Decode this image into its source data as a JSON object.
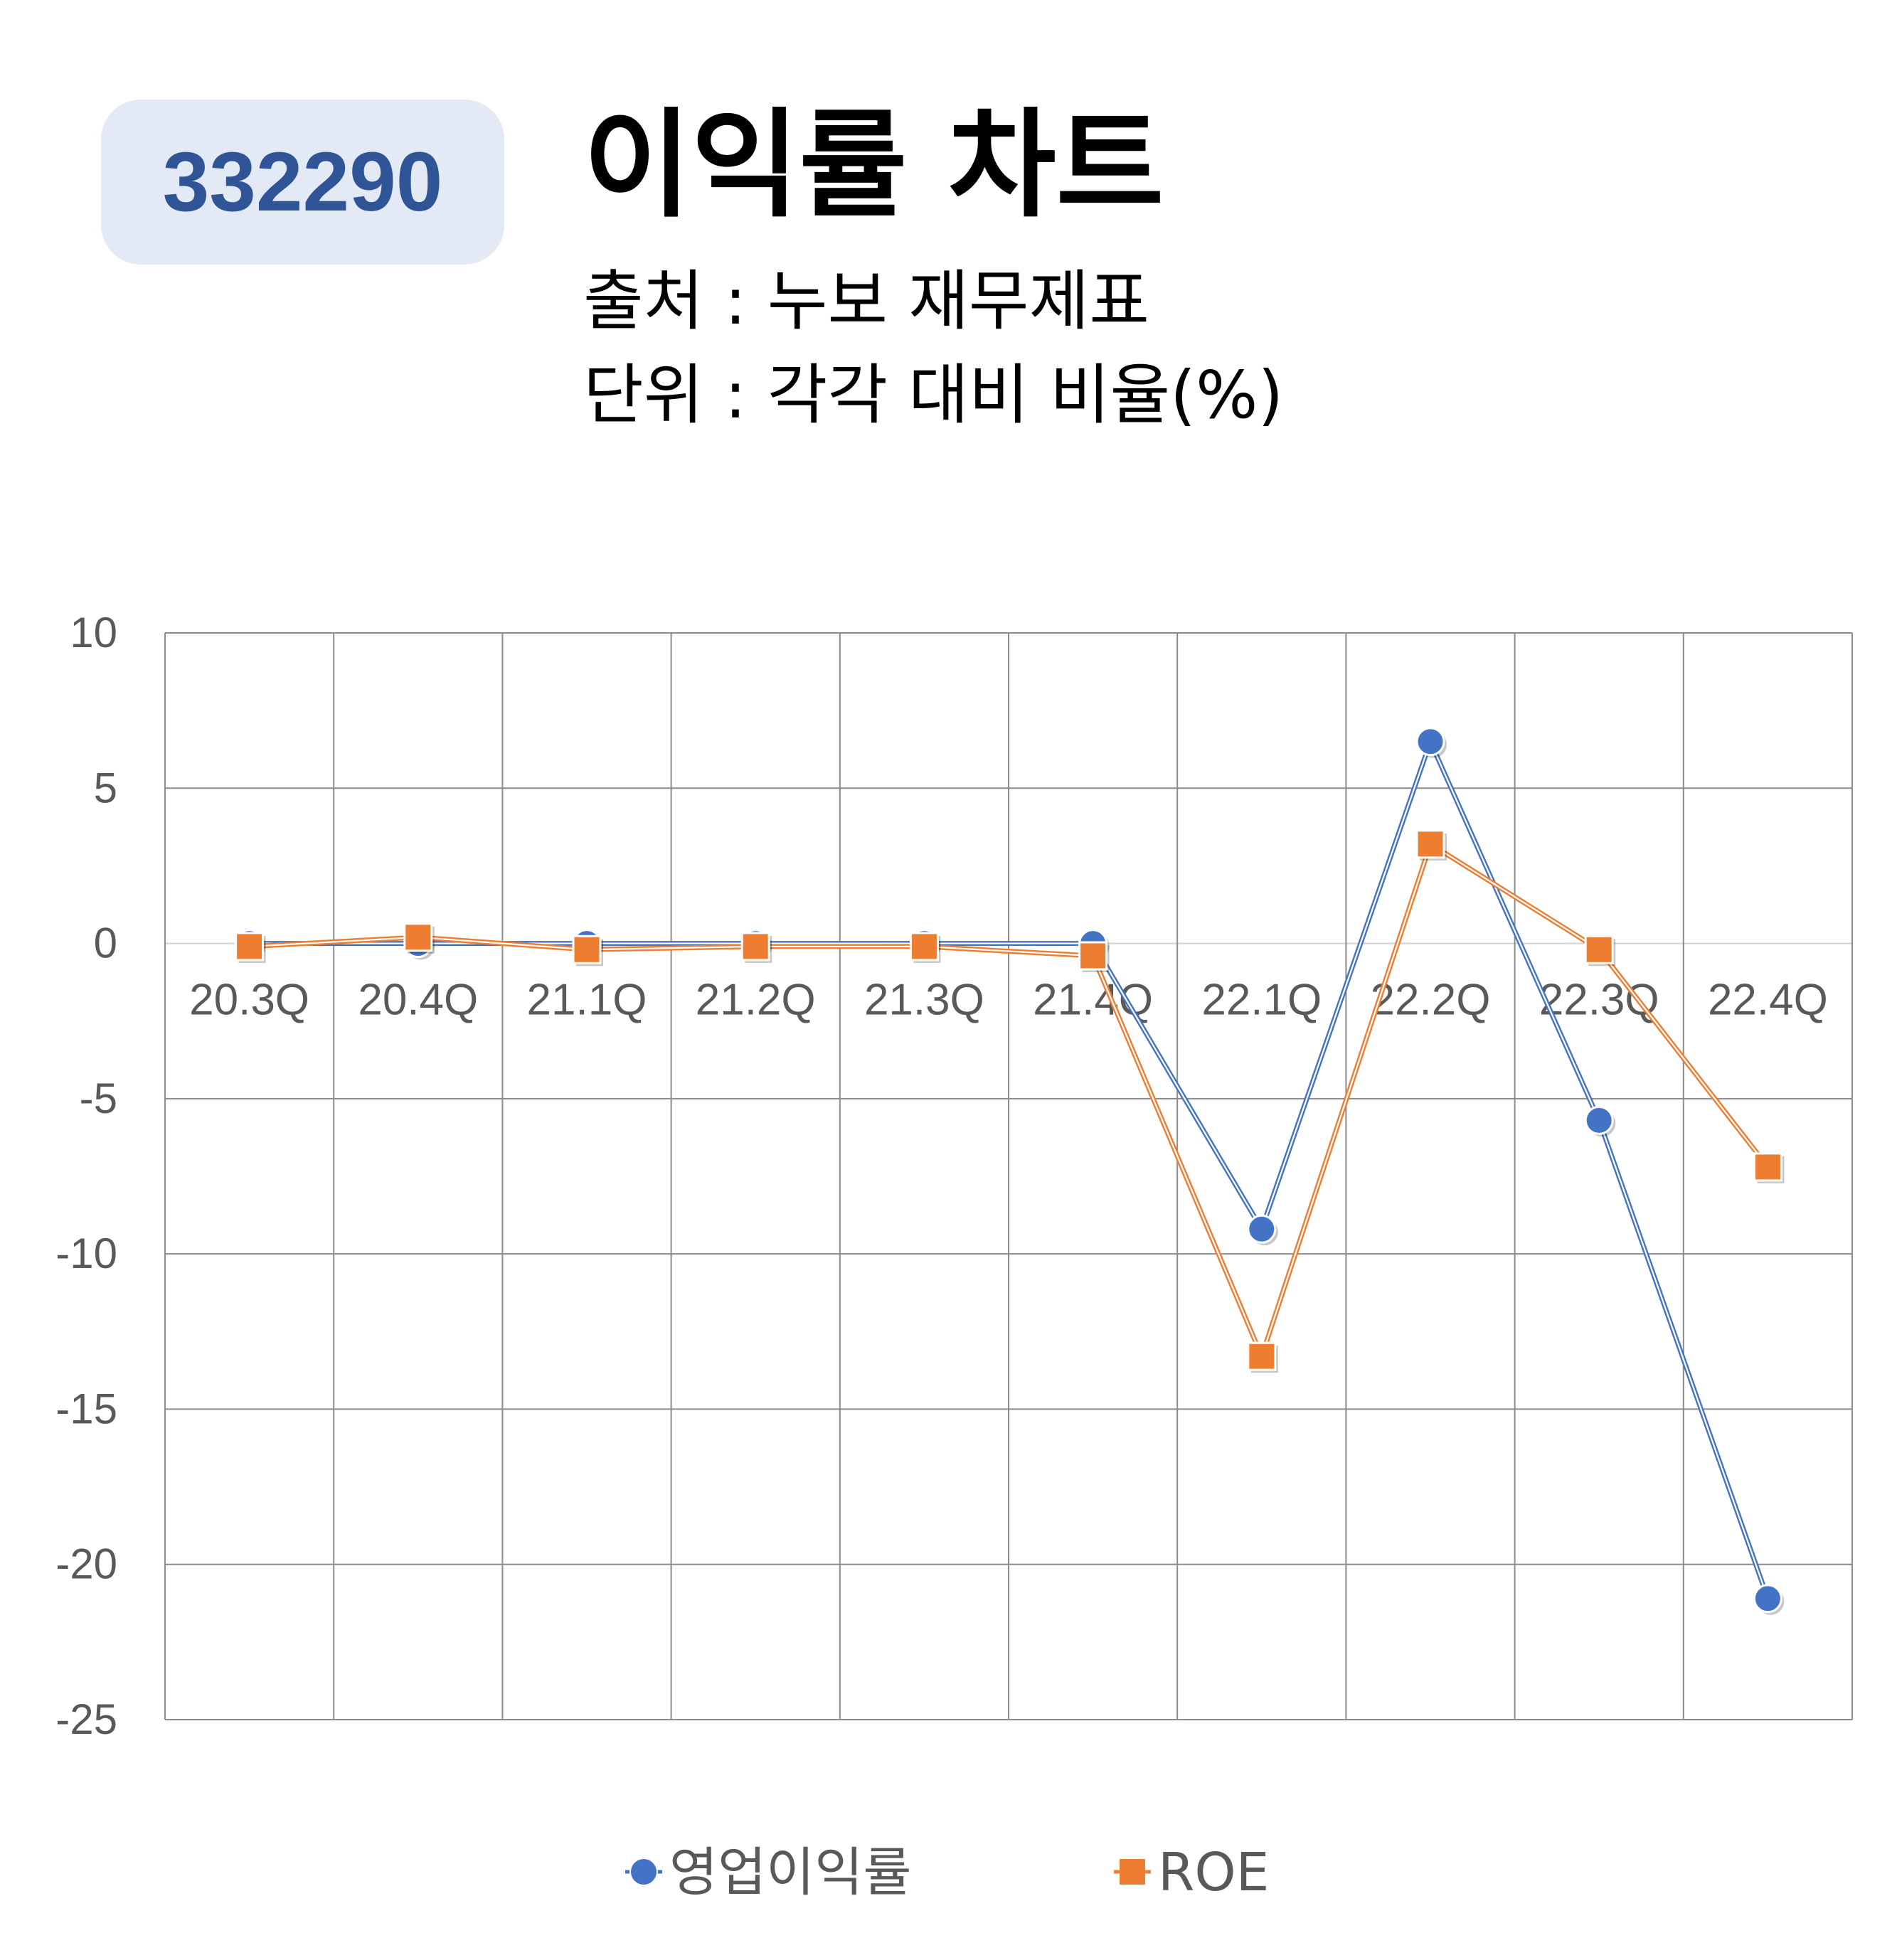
{
  "header": {
    "code": "332290",
    "title": "이익률 차트",
    "source_line": "출처 : 누보 재무제표",
    "unit_line": "단위 : 각각 대비 비율(%)"
  },
  "chart_data": {
    "type": "line",
    "categories": [
      "20.3Q",
      "20.4Q",
      "21.1Q",
      "21.2Q",
      "21.3Q",
      "21.4Q",
      "22.1Q",
      "22.2Q",
      "22.3Q",
      "22.4Q"
    ],
    "series": [
      {
        "name": "영업이익률",
        "color": "#4472c4",
        "marker": "circle",
        "values": [
          0.0,
          0.0,
          0.0,
          0.0,
          0.0,
          0.0,
          -9.2,
          6.5,
          -5.7,
          -21.1
        ]
      },
      {
        "name": "ROE",
        "color": "#ed7d31",
        "marker": "square",
        "values": [
          -0.1,
          0.2,
          -0.2,
          -0.1,
          -0.1,
          -0.4,
          -13.3,
          3.2,
          -0.2,
          -7.2
        ]
      }
    ],
    "ylim": [
      -25,
      10
    ],
    "yticks": [
      10,
      5,
      0,
      -5,
      -10,
      -15,
      -20,
      -25
    ],
    "grid": true,
    "legend_position": "bottom"
  }
}
